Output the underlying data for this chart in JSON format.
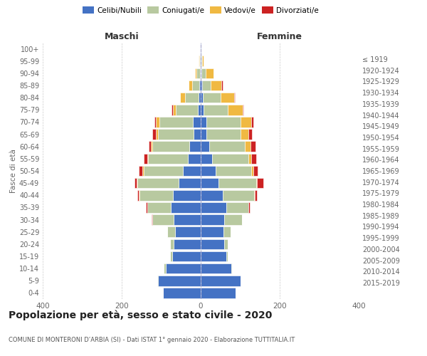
{
  "age_groups": [
    "0-4",
    "5-9",
    "10-14",
    "15-19",
    "20-24",
    "25-29",
    "30-34",
    "35-39",
    "40-44",
    "45-49",
    "50-54",
    "55-59",
    "60-64",
    "65-69",
    "70-74",
    "75-79",
    "80-84",
    "85-89",
    "90-94",
    "95-99",
    "100+"
  ],
  "birth_years": [
    "2015-2019",
    "2010-2014",
    "2005-2009",
    "2000-2004",
    "1995-1999",
    "1990-1994",
    "1985-1989",
    "1980-1984",
    "1975-1979",
    "1970-1974",
    "1965-1969",
    "1960-1964",
    "1955-1959",
    "1950-1954",
    "1945-1949",
    "1940-1944",
    "1935-1939",
    "1930-1934",
    "1925-1929",
    "1920-1924",
    "≤ 1919"
  ],
  "colors": {
    "celibi": "#4472c4",
    "coniugati": "#b8c9a0",
    "vedovi": "#f0b942",
    "divorziati": "#cc2222"
  },
  "maschi": {
    "celibi": [
      95,
      108,
      88,
      72,
      68,
      65,
      68,
      75,
      70,
      55,
      45,
      33,
      28,
      18,
      20,
      8,
      5,
      3,
      2,
      1,
      1
    ],
    "coniugati": [
      0,
      2,
      5,
      5,
      10,
      20,
      55,
      60,
      85,
      105,
      100,
      100,
      95,
      90,
      85,
      55,
      35,
      18,
      8,
      2,
      0
    ],
    "vedovi": [
      0,
      0,
      0,
      0,
      0,
      0,
      0,
      1,
      1,
      2,
      2,
      2,
      3,
      6,
      8,
      8,
      12,
      10,
      5,
      2,
      0
    ],
    "divorziati": [
      0,
      0,
      0,
      0,
      0,
      0,
      2,
      3,
      5,
      5,
      10,
      10,
      5,
      8,
      5,
      3,
      0,
      0,
      0,
      0,
      0
    ]
  },
  "femmine": {
    "nubili": [
      88,
      100,
      78,
      65,
      60,
      58,
      60,
      65,
      55,
      45,
      38,
      28,
      22,
      15,
      15,
      8,
      5,
      3,
      2,
      1,
      1
    ],
    "coniugati": [
      0,
      0,
      2,
      3,
      8,
      18,
      45,
      55,
      80,
      95,
      90,
      92,
      90,
      85,
      85,
      60,
      45,
      22,
      10,
      2,
      0
    ],
    "vedovi": [
      0,
      0,
      0,
      0,
      0,
      0,
      0,
      1,
      2,
      3,
      5,
      8,
      15,
      20,
      28,
      38,
      35,
      28,
      20,
      5,
      1
    ],
    "divorziati": [
      0,
      0,
      0,
      0,
      0,
      0,
      0,
      3,
      5,
      15,
      12,
      12,
      12,
      10,
      5,
      3,
      2,
      2,
      0,
      0,
      0
    ]
  },
  "xlim": 400,
  "title": "Popolazione per età, sesso e stato civile - 2020",
  "subtitle": "COMUNE DI MONTERONI D’ARBIA (SI) - Dati ISTAT 1° gennaio 2020 - Elaborazione TUTTITALIA.IT",
  "xlabel_left": "Maschi",
  "xlabel_right": "Femmine",
  "ylabel_left": "Fasce di età",
  "background_color": "#ffffff",
  "grid_color": "#cccccc"
}
